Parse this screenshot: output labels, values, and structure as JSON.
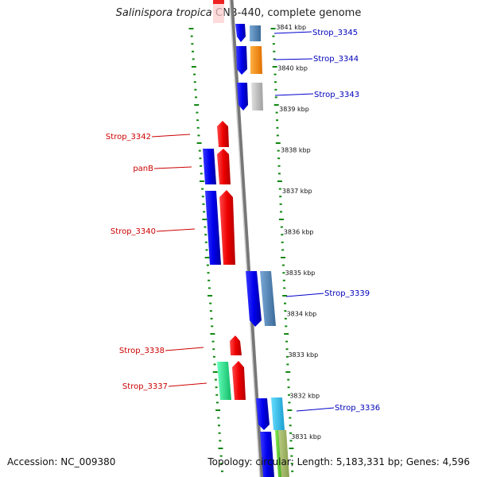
{
  "title": {
    "species": "Salinispora tropica",
    "rest": " CNB-440, complete genome"
  },
  "footer": {
    "accession": "Accession: NC_009380",
    "topology": "Topology: circular; Length: 5,183,331 bp; Genes: 4,596"
  },
  "scale_labels": [
    "3841 kbp",
    "3840 kbp",
    "3839 kbp",
    "3838 kbp",
    "3837 kbp",
    "3836 kbp",
    "3835 kbp",
    "3834 kbp",
    "3833 kbp",
    "3832 kbp",
    "3831 kbp"
  ],
  "genes_left": [
    {
      "label": "Strop_3342",
      "color": "#cc0000"
    },
    {
      "label": "panB",
      "color": "#cc0000"
    },
    {
      "label": "Strop_3340",
      "color": "#cc0000"
    },
    {
      "label": "Strop_3338",
      "color": "#cc0000"
    },
    {
      "label": "Strop_3337",
      "color": "#cc0000"
    }
  ],
  "genes_right": [
    {
      "label": "Strop_3345",
      "color": "#0000bb"
    },
    {
      "label": "Strop_3344",
      "color": "#0000bb"
    },
    {
      "label": "Strop_3343",
      "color": "#0000bb"
    },
    {
      "label": "Strop_3339",
      "color": "#0000bb"
    },
    {
      "label": "Strop_3336",
      "color": "#0000bb"
    }
  ],
  "colors": {
    "forward_strand": "#ee1111",
    "reverse_strand": "#1111dd",
    "backbone": "#888888",
    "ruler_dash": "#118811",
    "cog_orange": "#ff8c00",
    "cog_steelblue": "#4682b4",
    "cog_gray": "#b0b0b0",
    "cog_cyan": "#22bbee",
    "cog_green": "#22dd88"
  }
}
